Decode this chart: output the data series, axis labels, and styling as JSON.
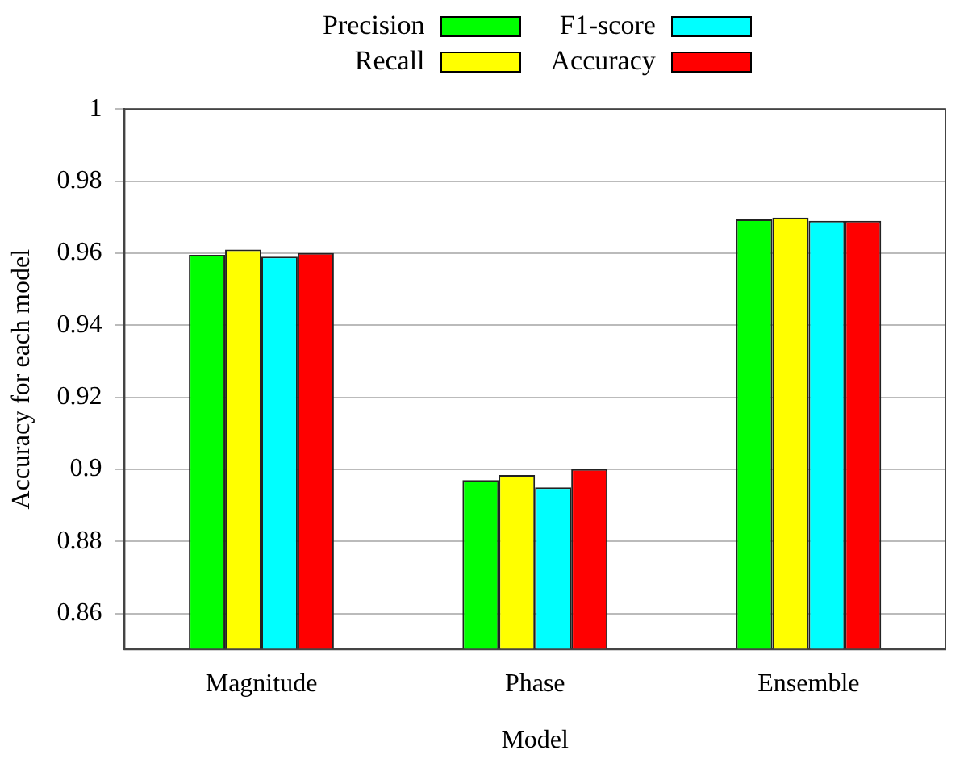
{
  "chart_data": {
    "type": "bar",
    "xlabel": "Model",
    "ylabel": "Accuracy for each model",
    "categories": [
      "Magnitude",
      "Phase",
      "Ensemble"
    ],
    "series": [
      {
        "name": "Precision",
        "color": "#00ff00",
        "values": [
          0.9595,
          0.897,
          0.9694
        ]
      },
      {
        "name": "Recall",
        "color": "#ffff00",
        "values": [
          0.961,
          0.8984,
          0.9699
        ]
      },
      {
        "name": "F1-score",
        "color": "#00ffff",
        "values": [
          0.959,
          0.895,
          0.969
        ]
      },
      {
        "name": "Accuracy",
        "color": "#ff0000",
        "values": [
          0.96,
          0.9,
          0.969
        ]
      }
    ],
    "ylim": [
      0.85,
      1
    ],
    "yticks": [
      0.86,
      0.88,
      0.9,
      0.92,
      0.94,
      0.96,
      0.98,
      1
    ],
    "grid": "y",
    "legend": "top"
  }
}
